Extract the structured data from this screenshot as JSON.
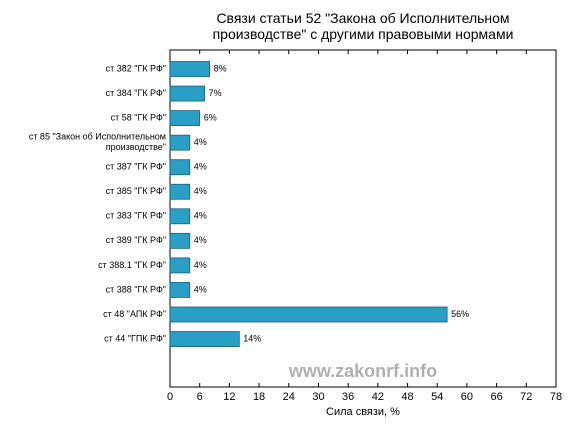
{
  "chart_data": {
    "type": "barh",
    "title": "Связи статьи 52 \"Закона об Исполнительном\nпроизводстве\" с другими правовыми нормами",
    "categories": [
      "ст 382 \"ГК РФ\"",
      "ст 384 \"ГК РФ\"",
      "ст 58 \"ГК РФ\"",
      "ст 85 \"Закон об Исполнительном\nпроизводстве\"",
      "ст 387 \"ГК РФ\"",
      "ст 385 \"ГК РФ\"",
      "ст 383 \"ГК РФ\"",
      "ст 389 \"ГК РФ\"",
      "ст 388.1 \"ГК РФ\"",
      "ст 388 \"ГК РФ\"",
      "ст 48 \"АПК РФ\"",
      "ст 44 \"ГПК РФ\""
    ],
    "values": [
      8,
      7,
      6,
      4,
      4,
      4,
      4,
      4,
      4,
      4,
      56,
      14
    ],
    "value_labels": [
      "8%",
      "7%",
      "6%",
      "4%",
      "4%",
      "4%",
      "4%",
      "4%",
      "4%",
      "4%",
      "56%",
      "14%"
    ],
    "color": "#2a9fc6",
    "xlabel": "Сила связи, %",
    "xlim": [
      0,
      78
    ],
    "xticks": [
      0,
      6,
      12,
      18,
      24,
      30,
      36,
      42,
      48,
      54,
      60,
      66,
      72,
      78
    ],
    "annotation": "www.zakonrf.info"
  }
}
